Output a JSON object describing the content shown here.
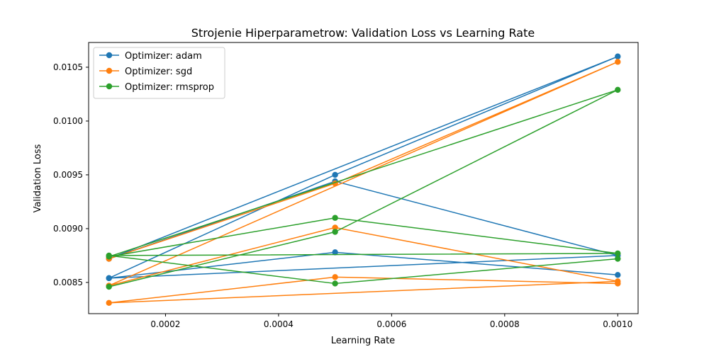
{
  "chart_data": {
    "type": "line",
    "title": "Strojenie Hiperparametrow: Validation Loss vs Learning Rate",
    "xlabel": "Learning Rate",
    "ylabel": "Validation Loss",
    "xlim": [
      6.4e-05,
      0.001036
    ],
    "ylim": [
      0.00821,
      0.01073
    ],
    "xticks": [
      {
        "value": 0.0002,
        "label": "0.0002"
      },
      {
        "value": 0.0004,
        "label": "0.0004"
      },
      {
        "value": 0.0006,
        "label": "0.0006"
      },
      {
        "value": 0.0008,
        "label": "0.0008"
      },
      {
        "value": 0.001,
        "label": "0.0010"
      }
    ],
    "yticks": [
      {
        "value": 0.0085,
        "label": "0.0085"
      },
      {
        "value": 0.009,
        "label": "0.0090"
      },
      {
        "value": 0.0095,
        "label": "0.0095"
      },
      {
        "value": 0.01,
        "label": "0.0100"
      },
      {
        "value": 0.0105,
        "label": "0.0105"
      }
    ],
    "grid": false,
    "legend_position": "top-left",
    "series": [
      {
        "name": "Optimizer: adam",
        "color": "#1f77b4",
        "x": [
          0.0001,
          0.0005,
          0.001,
          0.0001,
          0.0005,
          0.001,
          0.0001,
          0.0005,
          0.001
        ],
        "y": [
          0.00854,
          0.0095,
          0.0106,
          0.00872,
          0.00944,
          0.00875,
          0.00854,
          0.00878,
          0.00857
        ]
      },
      {
        "name": "Optimizer: sgd",
        "color": "#ff7f0e",
        "x": [
          0.0001,
          0.0005,
          0.001,
          0.0001,
          0.0005,
          0.001,
          0.0001,
          0.0005,
          0.001
        ],
        "y": [
          0.00872,
          0.00942,
          0.01055,
          0.00847,
          0.00901,
          0.00851,
          0.00831,
          0.00855,
          0.00849
        ]
      },
      {
        "name": "Optimizer: rmsprop",
        "color": "#2ca02c",
        "x": [
          0.0001,
          0.0005,
          0.001,
          0.0001,
          0.0005,
          0.001,
          0.0001,
          0.0005,
          0.001
        ],
        "y": [
          0.00846,
          0.00897,
          0.01029,
          0.00874,
          0.0091,
          0.00877,
          0.00875,
          0.00849,
          0.00872
        ]
      }
    ]
  }
}
